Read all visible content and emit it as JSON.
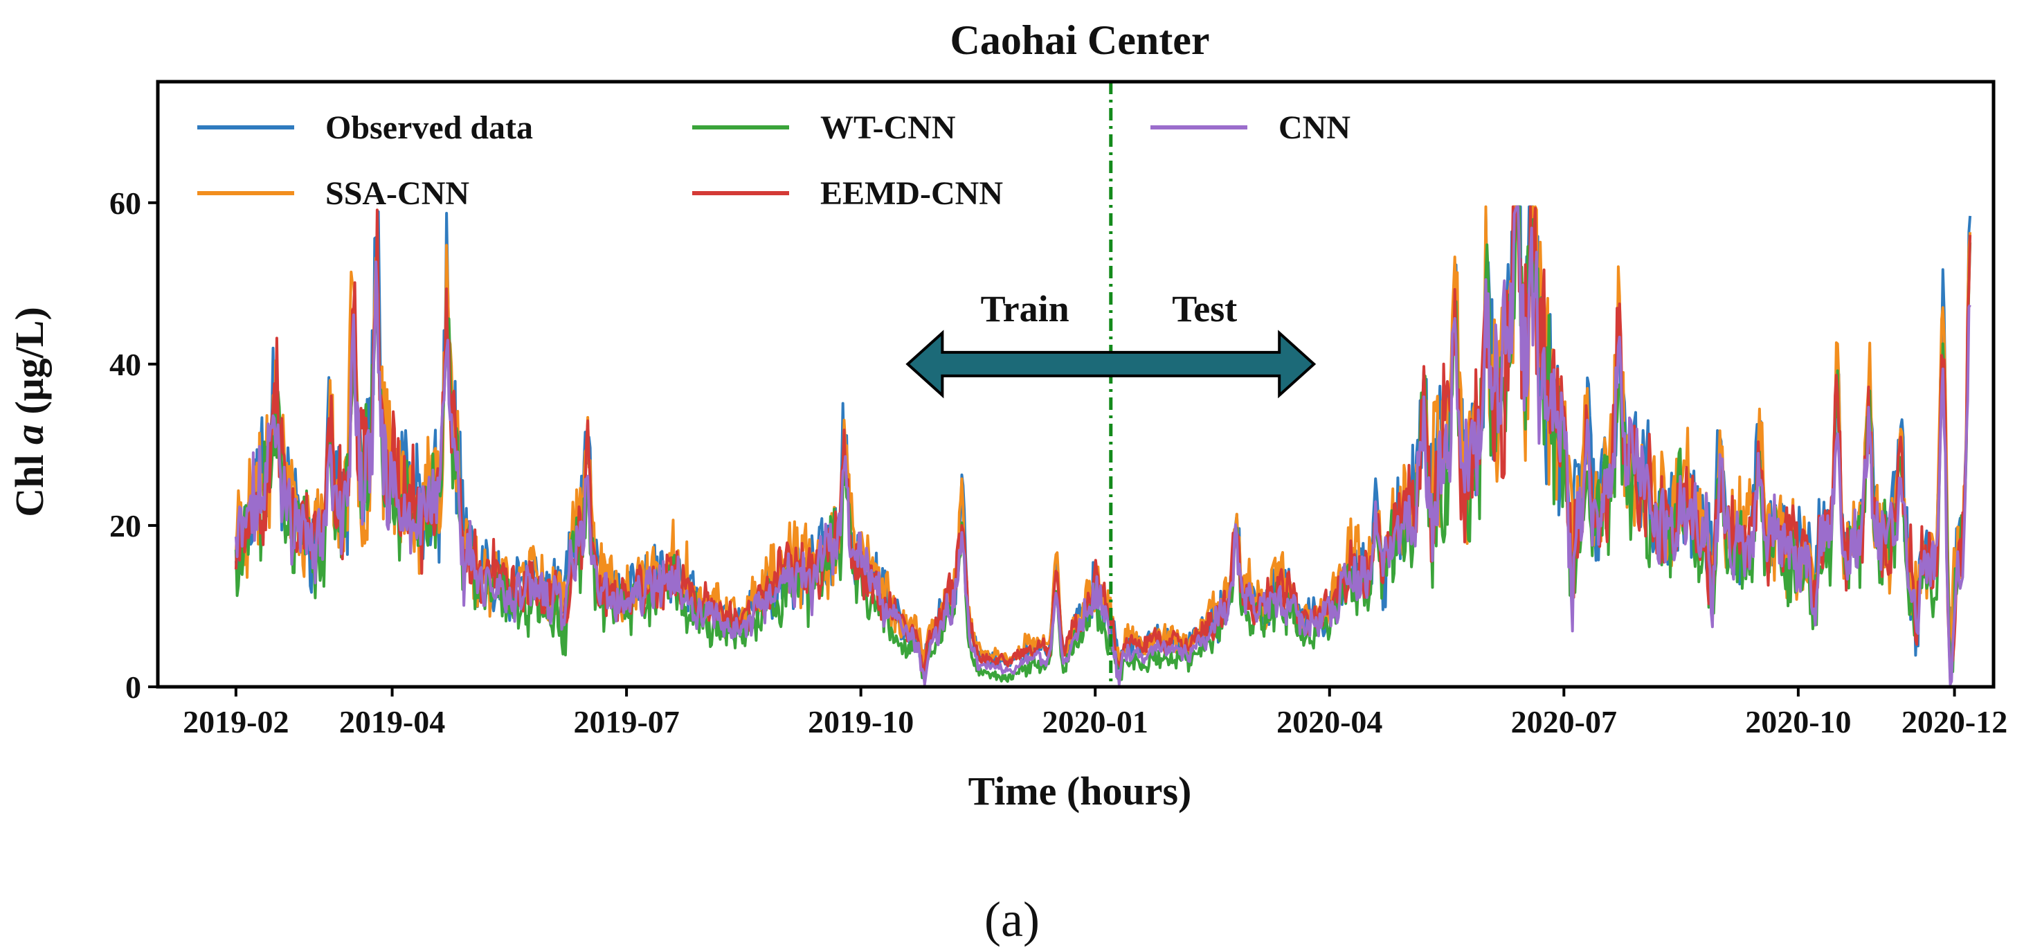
{
  "chart_data": {
    "type": "line",
    "title": "Caohai Center",
    "xlabel": "Time (hours)",
    "ylabel": {
      "prefix": "Chl ",
      "italic": "a",
      "suffix": " (μg/L)"
    },
    "xlim": [
      0,
      23.5
    ],
    "ylim": [
      0,
      75
    ],
    "x_unit": "months since 2019-01",
    "x_ticks": [
      {
        "label": "2019-02",
        "value": 1
      },
      {
        "label": "2019-04",
        "value": 3
      },
      {
        "label": "2019-07",
        "value": 6
      },
      {
        "label": "2019-10",
        "value": 9
      },
      {
        "label": "2020-01",
        "value": 12
      },
      {
        "label": "2020-04",
        "value": 15
      },
      {
        "label": "2020-07",
        "value": 18
      },
      {
        "label": "2020-10",
        "value": 21
      },
      {
        "label": "2020-12",
        "value": 23
      }
    ],
    "y_ticks": [
      0,
      20,
      40,
      60
    ],
    "split_x": 12.2,
    "annotations": {
      "train": "Train",
      "test": "Test"
    },
    "arrow": {
      "x_start": 9.6,
      "x_end": 14.8,
      "y": 40,
      "color": "#1c6a78"
    },
    "legend": {
      "location": "upper-left",
      "columns": 3
    },
    "series": [
      {
        "name": "Observed data",
        "color": "#2f7bbf",
        "offset": 1.0,
        "amp": 1.15,
        "seed": 11
      },
      {
        "name": "SSA-CNN",
        "color": "#f28e1e",
        "offset": 1.5,
        "amp": 1.2,
        "seed": 23
      },
      {
        "name": "WT-CNN",
        "color": "#3aa43a",
        "offset": -1.0,
        "amp": 1.0,
        "seed": 37
      },
      {
        "name": "EEMD-CNN",
        "color": "#d43a36",
        "offset": 1.0,
        "amp": 1.0,
        "seed": 53
      },
      {
        "name": "CNN",
        "color": "#9b6dcc",
        "offset": 0.0,
        "amp": 0.85,
        "seed": 71
      }
    ],
    "base_profile": [
      [
        1.0,
        18
      ],
      [
        1.2,
        22
      ],
      [
        1.4,
        27
      ],
      [
        1.6,
        25
      ],
      [
        1.8,
        20
      ],
      [
        2.0,
        17
      ],
      [
        2.2,
        18
      ],
      [
        2.4,
        22
      ],
      [
        2.6,
        26
      ],
      [
        2.8,
        28
      ],
      [
        3.0,
        25
      ],
      [
        3.2,
        22
      ],
      [
        3.4,
        20
      ],
      [
        3.6,
        25
      ],
      [
        3.8,
        30
      ],
      [
        3.95,
        18
      ],
      [
        4.1,
        12
      ],
      [
        4.3,
        13
      ],
      [
        4.5,
        11
      ],
      [
        4.8,
        12
      ],
      [
        5.0,
        10
      ],
      [
        5.2,
        14
      ],
      [
        5.4,
        18
      ],
      [
        5.6,
        13
      ],
      [
        5.8,
        11
      ],
      [
        6.0,
        10
      ],
      [
        6.3,
        12
      ],
      [
        6.6,
        13
      ],
      [
        6.9,
        10
      ],
      [
        7.2,
        8
      ],
      [
        7.5,
        7
      ],
      [
        7.8,
        11
      ],
      [
        8.1,
        14
      ],
      [
        8.4,
        13
      ],
      [
        8.7,
        18
      ],
      [
        9.0,
        15
      ],
      [
        9.3,
        10
      ],
      [
        9.6,
        6
      ],
      [
        9.9,
        5
      ],
      [
        10.2,
        12
      ],
      [
        10.5,
        3
      ],
      [
        10.9,
        2
      ],
      [
        11.2,
        4
      ],
      [
        11.6,
        3
      ],
      [
        12.0,
        12
      ],
      [
        12.3,
        5
      ],
      [
        12.6,
        4
      ],
      [
        12.9,
        5
      ],
      [
        13.2,
        4
      ],
      [
        13.5,
        7
      ],
      [
        13.8,
        11
      ],
      [
        14.1,
        9
      ],
      [
        14.4,
        11
      ],
      [
        14.7,
        7
      ],
      [
        15.0,
        9
      ],
      [
        15.3,
        14
      ],
      [
        15.6,
        12
      ],
      [
        15.9,
        20
      ],
      [
        16.2,
        24
      ],
      [
        16.5,
        28
      ],
      [
        16.8,
        27
      ],
      [
        17.1,
        35
      ],
      [
        17.4,
        44
      ],
      [
        17.7,
        42
      ],
      [
        18.0,
        28
      ],
      [
        18.3,
        18
      ],
      [
        18.6,
        24
      ],
      [
        18.9,
        29
      ],
      [
        19.2,
        20
      ],
      [
        19.5,
        22
      ],
      [
        19.8,
        19
      ],
      [
        20.1,
        18
      ],
      [
        20.4,
        17
      ],
      [
        20.7,
        18
      ],
      [
        21.0,
        16
      ],
      [
        21.3,
        18
      ],
      [
        21.6,
        15
      ],
      [
        21.9,
        20
      ],
      [
        22.2,
        18
      ],
      [
        22.5,
        15
      ],
      [
        22.8,
        14
      ],
      [
        23.0,
        16
      ],
      [
        23.2,
        18
      ]
    ],
    "spikes": [
      [
        1.5,
        12
      ],
      [
        2.2,
        14
      ],
      [
        2.5,
        20
      ],
      [
        2.8,
        23
      ],
      [
        3.7,
        19
      ],
      [
        5.5,
        12
      ],
      [
        8.8,
        11
      ],
      [
        10.3,
        11
      ],
      [
        11.5,
        10
      ],
      [
        13.8,
        8
      ],
      [
        15.6,
        9
      ],
      [
        16.2,
        10
      ],
      [
        16.6,
        18
      ],
      [
        17.0,
        17
      ],
      [
        17.4,
        22
      ],
      [
        17.6,
        16
      ],
      [
        18.3,
        12
      ],
      [
        18.7,
        16
      ],
      [
        20.0,
        9
      ],
      [
        20.5,
        12
      ],
      [
        21.5,
        20
      ],
      [
        21.9,
        14
      ],
      [
        22.3,
        11
      ],
      [
        22.85,
        28
      ],
      [
        23.2,
        35
      ]
    ],
    "dips": [
      [
        3.9,
        8
      ],
      [
        5.2,
        7
      ],
      [
        9.8,
        4
      ],
      [
        12.3,
        4
      ],
      [
        16.3,
        8
      ],
      [
        18.1,
        12
      ],
      [
        19.9,
        8
      ],
      [
        21.2,
        9
      ],
      [
        22.5,
        8
      ],
      [
        22.95,
        16
      ]
    ]
  },
  "caption": "(a)"
}
